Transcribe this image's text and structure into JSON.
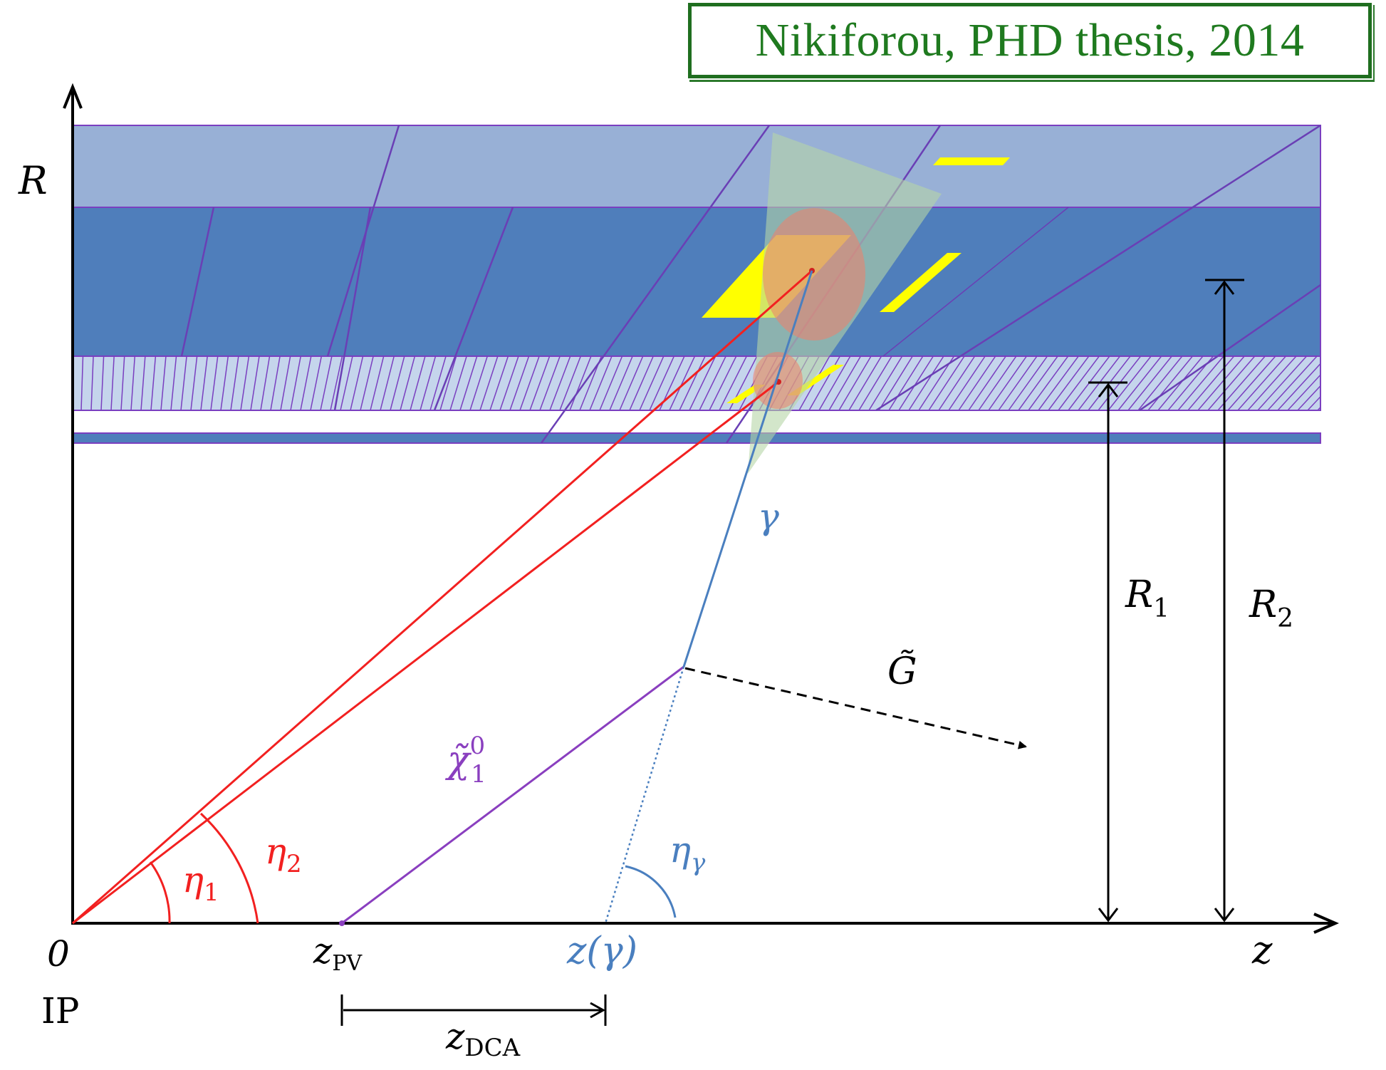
{
  "credit": {
    "text": "Nikiforou, PHD thesis, 2014"
  },
  "axes": {
    "r_label": "R",
    "z_label": "z",
    "origin_label": "0",
    "ip_label": "IP"
  },
  "labels": {
    "eta1": {
      "base": "η",
      "sub": "1"
    },
    "eta2": {
      "base": "η",
      "sub": "2"
    },
    "eta_gamma": {
      "base": "η",
      "sub": "γ"
    },
    "gamma": "γ",
    "gravitino": "G̃",
    "neutralino": {
      "base": "χ̃",
      "sup": "0",
      "sub": "1"
    },
    "z_pv": {
      "base": "z",
      "sub": "PV"
    },
    "z_gamma": "z(γ)",
    "z_dca": {
      "base": "z",
      "sub": "DCA"
    },
    "r1": {
      "base": "R",
      "sub": "1"
    },
    "r2": {
      "base": "R",
      "sub": "2"
    }
  },
  "colors": {
    "outer_layer": "#98b0d6",
    "middle_layer": "#4f7ebb",
    "strip_layer": "#c5d5ec",
    "border": "#7a3fc0",
    "red": "#f22020",
    "blue": "#4a7fbf",
    "purple": "#8a3fbf",
    "yellow": "#ffff00",
    "green": "#1f7a1f"
  }
}
